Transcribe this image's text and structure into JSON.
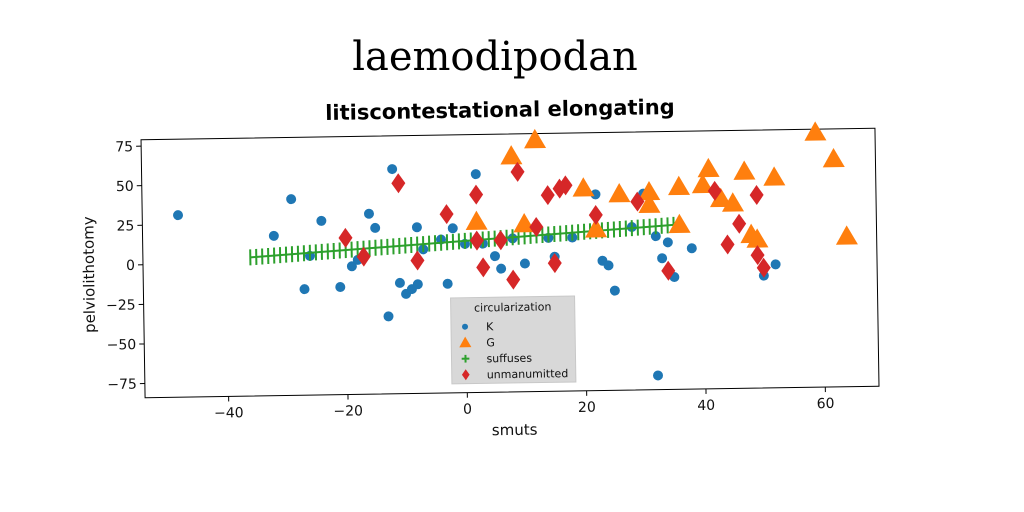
{
  "chart_data": {
    "type": "scatter",
    "suptitle": "laemodipodan",
    "title": "litiscontestational elongating",
    "xlabel": "smuts",
    "ylabel": "pelviolithotomy",
    "xlim": [
      -54,
      69
    ],
    "ylim": [
      -84,
      79
    ],
    "xticks": [
      -40,
      -20,
      0,
      20,
      40,
      60
    ],
    "yticks": [
      -75,
      -50,
      -25,
      0,
      25,
      50,
      75
    ],
    "xtick_labels": [
      "−40",
      "−20",
      "0",
      "20",
      "40",
      "60"
    ],
    "ytick_labels": [
      "−75",
      "−50",
      "−25",
      "0",
      "25",
      "50",
      "75"
    ],
    "legend": {
      "title": "circularization",
      "position": "lower-center"
    },
    "colors": {
      "K": "#1f77b4",
      "G": "#ff7f0e",
      "suffuses": "#2ca02c",
      "unmanumitted": "#d62728"
    },
    "series": [
      {
        "name": "K",
        "marker": "circle",
        "points": [
          [
            -48,
            31
          ],
          [
            -32,
            17
          ],
          [
            -29,
            40
          ],
          [
            -27,
            -17
          ],
          [
            -26,
            4
          ],
          [
            -24,
            26
          ],
          [
            -21,
            -16
          ],
          [
            -19,
            -3
          ],
          [
            -18,
            1
          ],
          [
            -16,
            30
          ],
          [
            -15,
            21
          ],
          [
            -13,
            -35
          ],
          [
            -12,
            58
          ],
          [
            -11,
            -14
          ],
          [
            -10,
            -21
          ],
          [
            -9,
            -18
          ],
          [
            -8,
            21
          ],
          [
            -8,
            -15
          ],
          [
            -7,
            7
          ],
          [
            -4,
            13
          ],
          [
            -3,
            -15
          ],
          [
            -2,
            20
          ],
          [
            0,
            10
          ],
          [
            1,
            -31
          ],
          [
            2,
            54
          ],
          [
            3,
            10
          ],
          [
            5,
            2
          ],
          [
            6,
            -6
          ],
          [
            8,
            13
          ],
          [
            10,
            -3
          ],
          [
            14,
            13
          ],
          [
            15,
            1
          ],
          [
            18,
            13
          ],
          [
            22,
            40
          ],
          [
            23,
            -2
          ],
          [
            24,
            -5
          ],
          [
            25,
            -21
          ],
          [
            28,
            19
          ],
          [
            30,
            40
          ],
          [
            32,
            13
          ],
          [
            33,
            -1
          ],
          [
            34,
            9
          ],
          [
            35,
            -13
          ],
          [
            38,
            5
          ],
          [
            32,
            -75
          ],
          [
            50,
            -13
          ],
          [
            52,
            -6
          ]
        ]
      },
      {
        "name": "G",
        "marker": "triangle",
        "points": [
          [
            2,
            24
          ],
          [
            8,
            65
          ],
          [
            10,
            22
          ],
          [
            12,
            75
          ],
          [
            20,
            44
          ],
          [
            22,
            18
          ],
          [
            26,
            40
          ],
          [
            31,
            41
          ],
          [
            31,
            33
          ],
          [
            36,
            44
          ],
          [
            36,
            20
          ],
          [
            40,
            45
          ],
          [
            41,
            55
          ],
          [
            43,
            36
          ],
          [
            45,
            33
          ],
          [
            47,
            53
          ],
          [
            48,
            13
          ],
          [
            49,
            10
          ],
          [
            52,
            49
          ],
          [
            59,
            77
          ],
          [
            62,
            60
          ],
          [
            64,
            11
          ]
        ]
      },
      {
        "name": "suffuses",
        "marker": "plus",
        "x_range": [
          -36,
          35
        ],
        "line": {
          "intercept": 11.9,
          "slope": 0.23
        }
      },
      {
        "name": "unmanumitted",
        "marker": "diamond",
        "points": [
          [
            -20,
            15
          ],
          [
            -17,
            3
          ],
          [
            -11,
            49
          ],
          [
            -8,
            0
          ],
          [
            -3,
            29
          ],
          [
            2,
            12
          ],
          [
            2,
            41
          ],
          [
            3,
            -5
          ],
          [
            6,
            12
          ],
          [
            8,
            -13
          ],
          [
            9,
            55
          ],
          [
            12,
            20
          ],
          [
            14,
            40
          ],
          [
            15,
            -3
          ],
          [
            16,
            44
          ],
          [
            17,
            46
          ],
          [
            22,
            27
          ],
          [
            29,
            35
          ],
          [
            34,
            -9
          ],
          [
            42,
            41
          ],
          [
            44,
            7
          ],
          [
            46,
            20
          ],
          [
            49,
            38
          ],
          [
            49,
            0
          ],
          [
            50,
            -8
          ]
        ]
      }
    ]
  }
}
